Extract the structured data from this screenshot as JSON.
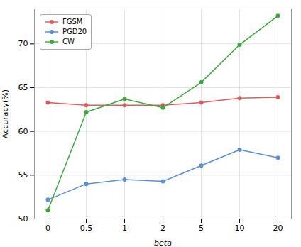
{
  "chart_data": {
    "type": "line",
    "xlabel": "beta",
    "ylabel": "Accuracy(%)",
    "categories": [
      "0",
      "0.5",
      "1",
      "2",
      "5",
      "10",
      "20"
    ],
    "series": [
      {
        "name": "FGSM",
        "color": "#E05C5C",
        "values": [
          63.3,
          63.0,
          63.0,
          63.0,
          63.3,
          63.8,
          63.9
        ]
      },
      {
        "name": "PGD20",
        "color": "#5B8FD4",
        "values": [
          52.2,
          54.0,
          54.5,
          54.3,
          56.1,
          57.9,
          57.0
        ]
      },
      {
        "name": "CW",
        "color": "#3CA83C",
        "values": [
          51.0,
          62.2,
          63.7,
          62.7,
          65.6,
          69.9,
          73.2
        ]
      }
    ],
    "ylim": [
      50,
      74
    ],
    "yticks": [
      50,
      55,
      60,
      65,
      70
    ],
    "grid": true,
    "legend": "upper left",
    "marker": "o"
  }
}
